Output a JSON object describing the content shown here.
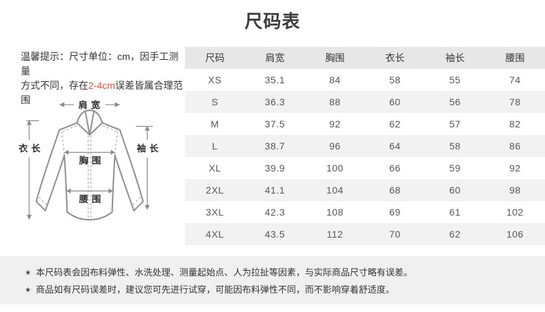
{
  "page": {
    "title": "尺码表"
  },
  "tip": {
    "line1": "温馨提示：尺寸单位：cm，因手工测量",
    "line2_pre": "方式不同，存在",
    "highlight": "2-4cm",
    "line2_post": "误差皆属合理范围",
    "highlight_color": "#ff4836"
  },
  "diagram": {
    "labels": {
      "shoulder": "肩宽",
      "length": "衣长",
      "sleeve": "袖长",
      "chest": "胸围",
      "waist": "腰围"
    }
  },
  "table": {
    "columns": [
      "尺码",
      "肩宽",
      "胸围",
      "衣长",
      "袖长",
      "腰围"
    ],
    "rows": [
      [
        "XS",
        "35.1",
        "84",
        "58",
        "55",
        "74"
      ],
      [
        "S",
        "36.3",
        "88",
        "60",
        "56",
        "78"
      ],
      [
        "M",
        "37.5",
        "92",
        "62",
        "57",
        "82"
      ],
      [
        "L",
        "38.7",
        "96",
        "64",
        "58",
        "86"
      ],
      [
        "XL",
        "39.9",
        "100",
        "66",
        "59",
        "92"
      ],
      [
        "2XL",
        "41.1",
        "104",
        "68",
        "60",
        "98"
      ],
      [
        "3XL",
        "42.3",
        "108",
        "69",
        "61",
        "102"
      ],
      [
        "4XL",
        "43.5",
        "112",
        "70",
        "62",
        "106"
      ]
    ],
    "header_bg": "#e7e7e7",
    "stripe_bg": "#f2f2f2"
  },
  "footer": {
    "bg": "#f0f0f0",
    "star": "★",
    "notes": [
      "本尺码表会因布料弹性、水洗处理、测量起始点、人为拉扯等因素，与实际商品尺寸略有误差。",
      "商品如有尺码误差时，建议您可先进行试穿，可能因布料弹性不同，而不影响穿着舒适度。"
    ]
  }
}
